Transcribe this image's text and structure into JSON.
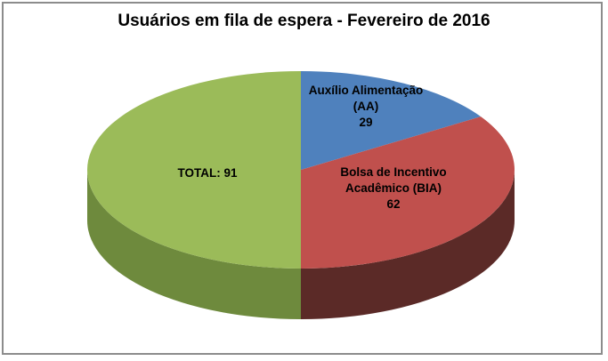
{
  "frame": {
    "background": "#FFFFFF",
    "border_color": "#8C8C8C"
  },
  "chart_data": {
    "type": "pie",
    "is_3d": true,
    "title": "Usuários em fila de espera - Fevereiro de 2016",
    "direction": "clockwise",
    "start_angle_deg": 0,
    "legend": "none",
    "label_placement": "inside",
    "label_color": "#000000",
    "displayed_total": 91,
    "slices": [
      {
        "id": "aa",
        "name": "Auxílio Alimentação (AA)",
        "value": 29,
        "label": "Auxílio Alimentação\n(AA)\n29",
        "color": "#4F81BD",
        "side_color": "#2F4E73"
      },
      {
        "id": "bia",
        "name": "Bolsa de Incentivo Acadêmico (BIA)",
        "value": 62,
        "label": "Bolsa de Incentivo\nAcadêmico (BIA)\n62",
        "color": "#C0504D",
        "side_color": "#5B2A27"
      },
      {
        "id": "total",
        "name": "TOTAL",
        "value": 91,
        "label": "TOTAL: 91",
        "color": "#9BBB59",
        "side_color": "#6E8A3D"
      }
    ]
  }
}
